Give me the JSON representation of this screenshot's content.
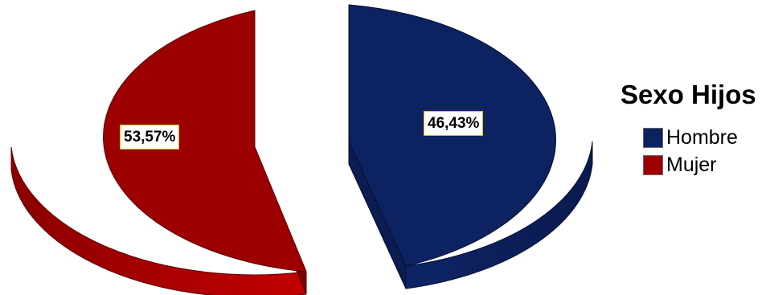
{
  "chart_data": {
    "type": "pie",
    "title": "",
    "exploded": true,
    "three_d": true,
    "legend": {
      "title": "Sexo Hijos",
      "placement": "right"
    },
    "slices": [
      {
        "name": "Hombre",
        "value": 46.43,
        "label": "46,43%",
        "color": "#0d2260"
      },
      {
        "name": "Mujer",
        "value": 53.57,
        "label": "53,57%",
        "color": "#9c0000"
      }
    ]
  }
}
